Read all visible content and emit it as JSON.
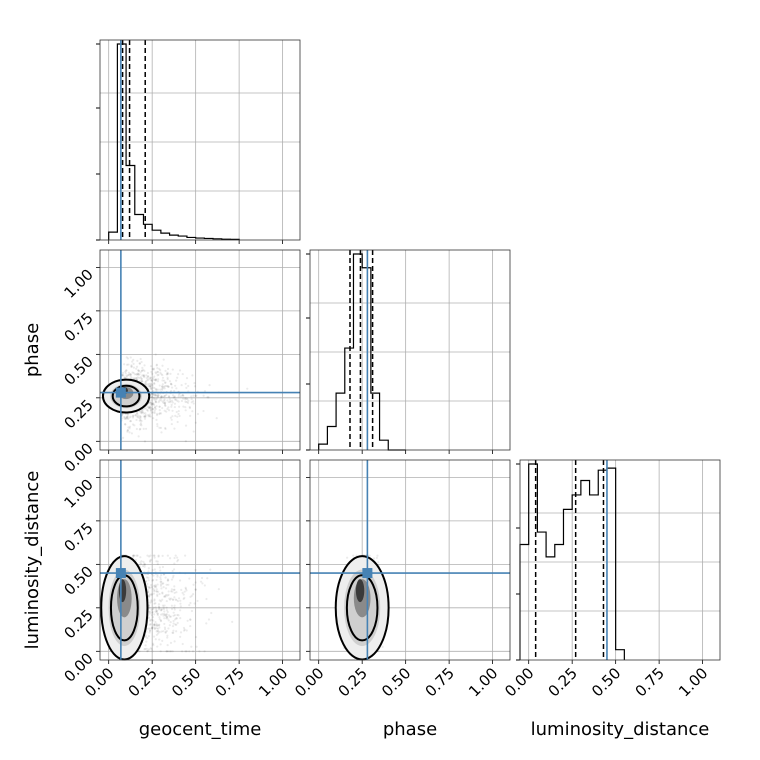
{
  "chart_data": {
    "type": "corner",
    "parameters": [
      "geocent_time",
      "phase",
      "luminosity_distance"
    ],
    "xlabels": [
      "geocent_time",
      "phase",
      "luminosity_distance"
    ],
    "ylabels": [
      "",
      "phase",
      "luminosity_distance"
    ],
    "xlim": [
      -0.05,
      1.1
    ],
    "ylim": [
      -0.05,
      1.1
    ],
    "ticks": [
      0.0,
      0.25,
      0.5,
      0.75,
      1.0
    ],
    "tick_labels": [
      "0.00",
      "0.25",
      "0.50",
      "0.75",
      "1.00"
    ],
    "grid": true,
    "truth_color": "#4682b4",
    "truths": {
      "geocent_time": 0.07,
      "phase": 0.28,
      "luminosity_distance": 0.45
    },
    "histograms": {
      "geocent_time": {
        "bin_edges": [
          0.0,
          0.05,
          0.1,
          0.15,
          0.2,
          0.25,
          0.3,
          0.35,
          0.4,
          0.45,
          0.5,
          0.55,
          0.6,
          0.65,
          0.7,
          0.75
        ],
        "counts": [
          0.04,
          1.0,
          0.38,
          0.13,
          0.08,
          0.05,
          0.035,
          0.025,
          0.02,
          0.013,
          0.01,
          0.008,
          0.006,
          0.004,
          0.003
        ],
        "quantiles": [
          0.08,
          0.12,
          0.21
        ]
      },
      "phase": {
        "bin_edges": [
          0.0,
          0.05,
          0.1,
          0.15,
          0.2,
          0.25,
          0.3,
          0.35,
          0.4,
          0.45,
          0.5
        ],
        "counts": [
          0.03,
          0.12,
          0.29,
          0.52,
          1.0,
          0.93,
          0.29,
          0.05,
          0.0,
          0.0
        ],
        "quantiles": [
          0.18,
          0.24,
          0.31
        ]
      },
      "luminosity_distance": {
        "bin_edges": [
          -0.05,
          0.0,
          0.05,
          0.1,
          0.15,
          0.2,
          0.25,
          0.3,
          0.35,
          0.4,
          0.45,
          0.5,
          0.55
        ],
        "counts": [
          0.56,
          0.95,
          0.62,
          0.5,
          0.56,
          0.73,
          0.8,
          0.87,
          0.8,
          0.92,
          0.93,
          0.05
        ],
        "quantiles": [
          0.04,
          0.27,
          0.43
        ]
      }
    },
    "panel_2d": {
      "geocent_time_vs_phase": {
        "x_center": 0.1,
        "y_center": 0.26,
        "x_spread": 0.18,
        "y_spread": 0.09
      },
      "geocent_time_vs_luminosity_distance": {
        "x_center": 0.09,
        "y_center": 0.25,
        "x_spread": 0.2,
        "y_spread": 0.15
      },
      "phase_vs_luminosity_distance": {
        "x_center": 0.25,
        "y_center": 0.25,
        "x_spread": 0.07,
        "y_spread": 0.15
      }
    }
  }
}
